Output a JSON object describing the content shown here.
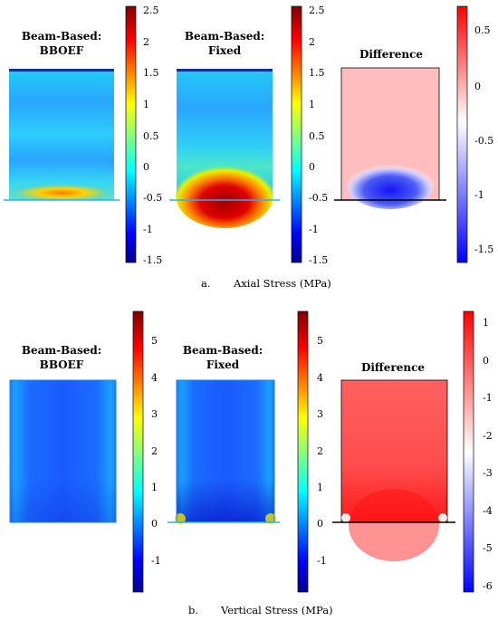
{
  "figure_a": {
    "caption_label": "a.",
    "caption_text": "Axial Stress (MPa)",
    "panels": [
      {
        "title_line1": "Beam-Based:",
        "title_line2": "BBOEF"
      },
      {
        "title_line1": "Beam-Based:",
        "title_line2": "Fixed"
      },
      {
        "title_line1": "Difference",
        "title_line2": ""
      }
    ],
    "jet_ticks": [
      "2.5",
      "2",
      "1.5",
      "1",
      "0.5",
      "0",
      "-0.5",
      "-1",
      "-1.5"
    ],
    "diff_ticks": [
      "0.5",
      "0",
      "-0.5",
      "-1",
      "-1.5"
    ]
  },
  "figure_b": {
    "caption_label": "b.",
    "caption_text": "Vertical Stress (MPa)",
    "panels": [
      {
        "title_line1": "Beam-Based:",
        "title_line2": "BBOEF"
      },
      {
        "title_line1": "Beam-Based:",
        "title_line2": "Fixed"
      },
      {
        "title_line1": "Difference",
        "title_line2": ""
      }
    ],
    "jet_ticks": [
      "5",
      "4",
      "3",
      "2",
      "1",
      "0",
      "-1"
    ],
    "diff_ticks": [
      "1",
      "0",
      "-1",
      "-2",
      "-3",
      "-4",
      "-5",
      "-6"
    ]
  }
}
